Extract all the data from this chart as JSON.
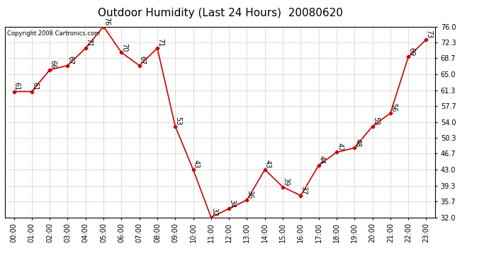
{
  "title": "Outdoor Humidity (Last 24 Hours)  20080620",
  "copyright_text": "Copyright 2008 Cartronics.com",
  "x_labels": [
    "00:00",
    "01:00",
    "02:00",
    "03:00",
    "04:00",
    "05:00",
    "06:00",
    "07:00",
    "08:00",
    "09:00",
    "10:00",
    "11:00",
    "12:00",
    "13:00",
    "14:00",
    "15:00",
    "16:00",
    "17:00",
    "18:00",
    "19:00",
    "20:00",
    "21:00",
    "22:00",
    "23:00"
  ],
  "y_values": [
    61,
    61,
    66,
    67,
    71,
    76,
    70,
    67,
    71,
    53,
    43,
    32,
    34,
    36,
    43,
    39,
    37,
    44,
    47,
    48,
    53,
    56,
    69,
    73
  ],
  "y_labels": [
    "32.0",
    "35.7",
    "39.3",
    "43.0",
    "46.7",
    "50.3",
    "54.0",
    "57.7",
    "61.3",
    "65.0",
    "68.7",
    "72.3",
    "76.0"
  ],
  "y_ticks": [
    32.0,
    35.7,
    39.3,
    43.0,
    46.7,
    50.3,
    54.0,
    57.7,
    61.3,
    65.0,
    68.7,
    72.3,
    76.0
  ],
  "ylim": [
    32.0,
    76.0
  ],
  "line_color": "#cc0000",
  "marker": "D",
  "marker_size": 2.5,
  "bg_color": "#ffffff",
  "grid_color": "#bbbbbb",
  "title_fontsize": 11,
  "label_fontsize": 7,
  "annotation_fontsize": 7,
  "copyright_fontsize": 6
}
